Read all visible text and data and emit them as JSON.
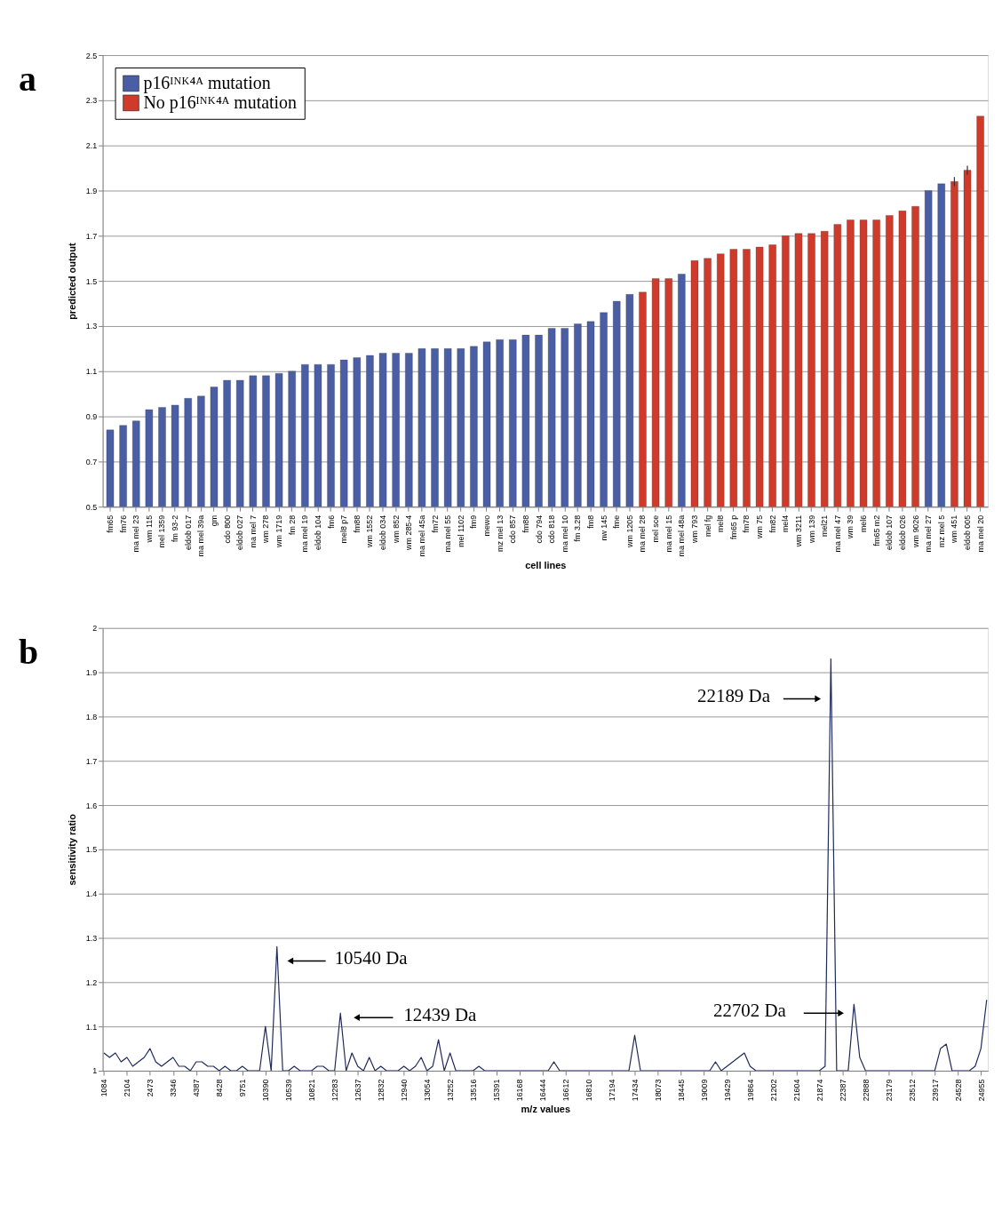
{
  "chart_data": [
    {
      "type": "bar",
      "stacked": true,
      "xlabel": "cell lines",
      "ylabel": "predicted output",
      "legend": "top left",
      "grid": "y",
      "annotations": [
        "a"
      ],
      "categories": [
        "fm65",
        "fm76",
        "ma mel 23",
        "wm 115",
        "mel 1359",
        "fm 93-2",
        "eldob 017",
        "ma mel 39a",
        "gm",
        "cdo 800",
        "eldob 027",
        "ma mel 7",
        "wm 278",
        "wm 1719",
        "fm 28",
        "ma mel 19",
        "eldob 104",
        "fm6",
        "mel8 p7",
        "fm88",
        "wm 1552",
        "eldob 034",
        "wm 852",
        "wm 285-4",
        "ma mel 45a",
        "fm72",
        "ma mel 55",
        "mel 1102",
        "fm9",
        "mewo",
        "mz mel 13",
        "cdo 857",
        "fm88",
        "cdo 794",
        "cdo 818",
        "ma mel 10",
        "fm 3.28",
        "fm8",
        "nw 145",
        "fme",
        "wm 1205",
        "ma mel 28",
        "mel sce",
        "ma mel 15",
        "ma mel 48a",
        "wm 793",
        "mel fg",
        "mel8",
        "fm65 p",
        "fm78",
        "wm 75",
        "fm82",
        "mel4",
        "wm 3211",
        "wm 139",
        "mel21",
        "ma mel 47",
        "wm 39",
        "mel6",
        "fm65 m2",
        "eldob 107",
        "eldob 026",
        "wm 9026",
        "ma mel 27",
        "mz mel 5",
        "wm 451",
        "eldob 005",
        "ma mel 20"
      ],
      "ylim": [
        0.5,
        2.5
      ],
      "yticks": [
        0.5,
        0.7,
        0.9,
        1.1,
        1.3,
        1.5,
        1.7,
        1.9,
        2.1,
        2.3,
        2.5
      ],
      "series": [
        {
          "name": "p16ᴵᴺᴷ⁴ᴬ mutation",
          "color": "#4a5ea6",
          "values": [
            0.84,
            0.86,
            0.88,
            0.93,
            0.94,
            0.95,
            0.98,
            0.99,
            1.03,
            1.06,
            1.06,
            1.08,
            1.08,
            1.09,
            1.1,
            1.13,
            1.13,
            1.13,
            1.15,
            1.16,
            1.17,
            1.18,
            1.18,
            1.18,
            1.2,
            1.2,
            1.2,
            1.2,
            1.21,
            1.23,
            1.24,
            1.24,
            1.26,
            1.26,
            1.29,
            1.29,
            1.31,
            1.32,
            1.36,
            1.41,
            1.44,
            null,
            null,
            null,
            1.53,
            null,
            null,
            null,
            null,
            null,
            null,
            null,
            null,
            null,
            null,
            null,
            null,
            null,
            null,
            null,
            null,
            null,
            null,
            1.9,
            1.93,
            null,
            null,
            null
          ]
        },
        {
          "name": "No p16ᴵᴺᴷ⁴ᴬ mutation",
          "color": "#cf3a2b",
          "values": [
            null,
            null,
            null,
            null,
            null,
            null,
            null,
            null,
            null,
            null,
            null,
            null,
            null,
            null,
            null,
            null,
            null,
            null,
            null,
            null,
            null,
            null,
            null,
            null,
            null,
            null,
            null,
            null,
            null,
            null,
            null,
            null,
            null,
            null,
            null,
            null,
            null,
            null,
            null,
            null,
            null,
            1.45,
            1.51,
            1.51,
            null,
            1.59,
            1.6,
            1.62,
            1.64,
            1.64,
            1.65,
            1.66,
            1.7,
            1.71,
            1.71,
            1.72,
            1.75,
            1.77,
            1.77,
            1.77,
            1.79,
            1.81,
            1.83,
            null,
            null,
            1.94,
            1.99,
            2.23
          ],
          "errors": [
            null,
            null,
            null,
            null,
            null,
            null,
            null,
            null,
            null,
            null,
            null,
            null,
            null,
            null,
            null,
            null,
            null,
            null,
            null,
            null,
            null,
            null,
            null,
            null,
            null,
            null,
            null,
            null,
            null,
            null,
            null,
            null,
            null,
            null,
            null,
            null,
            null,
            null,
            null,
            null,
            null,
            null,
            null,
            null,
            null,
            null,
            null,
            null,
            null,
            null,
            null,
            null,
            null,
            null,
            null,
            null,
            null,
            null,
            null,
            null,
            null,
            null,
            null,
            null,
            null,
            0.02,
            0.02,
            null
          ]
        }
      ]
    },
    {
      "type": "line",
      "xlabel": "m/z values",
      "ylabel": "sensitivity ratio",
      "legend": false,
      "grid": "y",
      "marker": "none",
      "line_style": "solid",
      "ylim": [
        1,
        2
      ],
      "yticks": [
        1,
        1.1,
        1.2,
        1.3,
        1.4,
        1.5,
        1.6,
        1.7,
        1.8,
        1.9,
        2
      ],
      "annotations": [
        "b",
        "10540 Da",
        "12439 Da",
        "22189 Da",
        "22702 Da"
      ],
      "categories": [
        "1084",
        null,
        null,
        null,
        "2104",
        null,
        null,
        null,
        "2473",
        null,
        null,
        null,
        "3346",
        null,
        null,
        null,
        "4387",
        null,
        null,
        null,
        "8428",
        null,
        null,
        null,
        "9751",
        null,
        null,
        null,
        "10390",
        null,
        null,
        null,
        "10539",
        null,
        null,
        null,
        "10821",
        null,
        null,
        null,
        "12283",
        null,
        null,
        null,
        "12637",
        null,
        null,
        null,
        "12832",
        null,
        null,
        null,
        "12940",
        null,
        null,
        null,
        "13054",
        null,
        null,
        null,
        "13252",
        null,
        null,
        null,
        "13516",
        null,
        null,
        null,
        "15391",
        null,
        null,
        null,
        "16168",
        null,
        null,
        null,
        "16444",
        null,
        null,
        null,
        "16612",
        null,
        null,
        null,
        "16810",
        null,
        null,
        null,
        "17194",
        null,
        null,
        null,
        "17434",
        null,
        null,
        null,
        "18073",
        null,
        null,
        null,
        "18445",
        null,
        null,
        null,
        "19009",
        null,
        null,
        null,
        "19429",
        null,
        null,
        null,
        "19864",
        null,
        null,
        null,
        "21202",
        null,
        null,
        null,
        "21604",
        null,
        null,
        null,
        "21874",
        null,
        null,
        null,
        "22387",
        null,
        null,
        null,
        "22888",
        null,
        null,
        null,
        "23179",
        null,
        null,
        null,
        "23512",
        null,
        null,
        null,
        "23917",
        null,
        null,
        null,
        "24528",
        null,
        null,
        null,
        "24955",
        null
      ],
      "series": [
        {
          "color": "#1f2a5c",
          "values": [
            1.04,
            1.03,
            1.04,
            1.02,
            1.03,
            1.01,
            1.02,
            1.03,
            1.05,
            1.02,
            1.01,
            1.02,
            1.03,
            1.01,
            1.01,
            1.0,
            1.02,
            1.02,
            1.01,
            1.01,
            1.0,
            1.01,
            1.0,
            1.0,
            1.01,
            1.0,
            1.0,
            1.0,
            1.1,
            1.0,
            1.28,
            1.0,
            1.0,
            1.01,
            1.0,
            1.0,
            1.0,
            1.01,
            1.01,
            1.0,
            1.0,
            1.13,
            1.0,
            1.04,
            1.01,
            1.0,
            1.03,
            1.0,
            1.01,
            1.0,
            1.0,
            1.0,
            1.01,
            1.0,
            1.01,
            1.03,
            1.0,
            1.01,
            1.07,
            1.0,
            1.04,
            1.0,
            1.0,
            1.0,
            1.0,
            1.01,
            1.0,
            1.0,
            1.0,
            1.0,
            1.0,
            1.0,
            1.0,
            1.0,
            1.0,
            1.0,
            1.0,
            1.0,
            1.02,
            1.0,
            1.0,
            1.0,
            1.0,
            1.0,
            1.0,
            1.0,
            1.0,
            1.0,
            1.0,
            1.0,
            1.0,
            1.0,
            1.08,
            1.0,
            1.0,
            1.0,
            1.0,
            1.0,
            1.0,
            1.0,
            1.0,
            1.0,
            1.0,
            1.0,
            1.0,
            1.0,
            1.02,
            1.0,
            1.01,
            1.02,
            1.03,
            1.04,
            1.01,
            1.0,
            1.0,
            1.0,
            1.0,
            1.0,
            1.0,
            1.0,
            1.0,
            1.0,
            1.0,
            1.0,
            1.0,
            1.01,
            1.93,
            1.0,
            1.0,
            1.0,
            1.15,
            1.03,
            1.0,
            1.0,
            1.0,
            1.0,
            1.0,
            1.0,
            1.0,
            1.0,
            1.0,
            1.0,
            1.0,
            1.0,
            1.0,
            1.05,
            1.06,
            1.0,
            1.0,
            1.0,
            1.0,
            1.01,
            1.05,
            1.16
          ]
        }
      ]
    }
  ]
}
